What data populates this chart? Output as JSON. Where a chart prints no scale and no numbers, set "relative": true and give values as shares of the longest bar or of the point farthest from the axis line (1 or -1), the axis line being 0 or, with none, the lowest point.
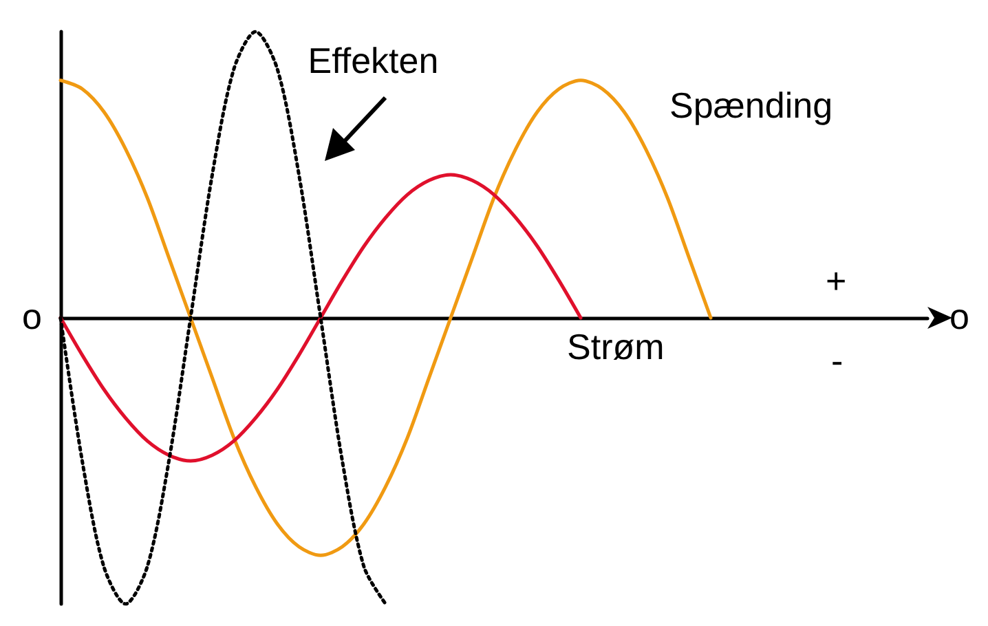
{
  "chart_data": {
    "type": "line",
    "relative": true,
    "legend": false,
    "grid": false,
    "marker": "none",
    "categories": [
      null,
      null,
      null,
      null,
      null,
      null,
      null,
      null,
      null,
      null,
      null,
      null,
      null,
      null,
      null,
      null,
      null,
      null,
      null,
      null,
      null,
      null,
      null,
      null,
      null,
      null,
      null,
      null,
      null,
      null,
      null,
      null,
      null,
      null,
      null,
      null,
      null,
      null,
      null,
      null,
      null
    ],
    "series": [
      {
        "name": "Spænding",
        "color": "#f09a12",
        "line_style": "solid",
        "values": [
          0.83,
          0.8,
          0.72,
          0.59,
          0.42,
          0.21,
          0,
          -0.21,
          -0.42,
          -0.59,
          -0.72,
          -0.8,
          -0.83,
          -0.8,
          -0.72,
          -0.59,
          -0.42,
          -0.21,
          0,
          0.21,
          0.42,
          0.59,
          0.72,
          0.8,
          0.83,
          0.8,
          0.72,
          0.59,
          0.42,
          0.21,
          0,
          null,
          null,
          null,
          null,
          null,
          null,
          null,
          null,
          null,
          null
        ]
      },
      {
        "name": "Strøm",
        "color": "#e0102c",
        "line_style": "solid",
        "values": [
          0,
          -0.13,
          -0.25,
          -0.35,
          -0.43,
          -0.48,
          -0.5,
          -0.48,
          -0.43,
          -0.35,
          -0.25,
          -0.13,
          0,
          0.13,
          0.25,
          0.35,
          0.43,
          0.48,
          0.5,
          0.48,
          0.43,
          0.35,
          0.25,
          0.13,
          0,
          null,
          null,
          null,
          null,
          null,
          null,
          null,
          null,
          null,
          null,
          null,
          null,
          null,
          null,
          null,
          null
        ]
      },
      {
        "name": "Effekten",
        "color": "#000000",
        "line_style": "dotted",
        "values": [
          0,
          -0.5,
          -0.87,
          -1,
          -0.87,
          -0.5,
          0,
          0.5,
          0.87,
          1,
          0.87,
          0.5,
          0,
          -0.5,
          -0.87,
          -1,
          null,
          null,
          null,
          null,
          null,
          null,
          null,
          null,
          null,
          null,
          null,
          null,
          null,
          null,
          null,
          null,
          null,
          null,
          null,
          null,
          null,
          null,
          null,
          null,
          null
        ]
      }
    ],
    "annotations": [
      "o",
      "o",
      "+",
      "-"
    ]
  }
}
